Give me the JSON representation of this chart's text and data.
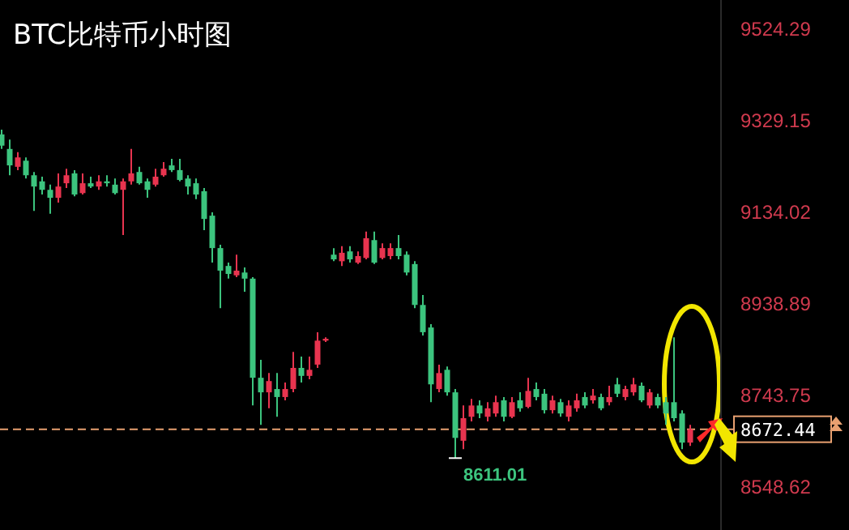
{
  "chart_data": {
    "type": "candlestick",
    "title": "BTC比特币小时图",
    "categories": [
      null,
      null,
      null,
      null,
      null,
      null,
      null,
      null,
      null,
      null,
      null,
      null,
      null,
      null,
      null,
      null,
      null,
      null,
      null,
      null,
      null,
      null,
      null,
      null,
      null,
      null,
      null,
      null,
      null,
      null,
      null,
      null,
      null,
      null,
      null,
      null,
      null,
      null,
      null,
      null,
      null,
      null,
      null,
      null,
      null,
      null,
      null,
      null,
      null,
      null,
      null,
      null,
      null,
      null,
      null,
      null,
      null,
      null,
      null,
      null,
      null,
      null,
      null,
      null,
      null,
      null,
      null,
      null,
      null,
      null,
      null,
      null,
      null,
      null,
      null,
      null,
      null,
      null,
      null,
      null,
      null,
      null,
      null,
      null,
      null,
      null
    ],
    "ohlc": [
      [
        9300,
        9310,
        9269,
        9276
      ],
      [
        9269,
        9289,
        9213,
        9234
      ],
      [
        9231,
        9262,
        9224,
        9251
      ],
      [
        9244,
        9251,
        9206,
        9213
      ],
      [
        9213,
        9220,
        9137,
        9189
      ],
      [
        9200,
        9210,
        9172,
        9182
      ],
      [
        9182,
        9193,
        9131,
        9165
      ],
      [
        9165,
        9217,
        9155,
        9189
      ],
      [
        9196,
        9227,
        9186,
        9213
      ],
      [
        9217,
        9224,
        9168,
        9172
      ],
      [
        9175,
        9217,
        9172,
        9196
      ],
      [
        9196,
        9210,
        9186,
        9189
      ],
      [
        9189,
        9213,
        9182,
        9200
      ],
      [
        9200,
        9213,
        9189,
        9196
      ],
      [
        9193,
        9206,
        9172,
        9175
      ],
      [
        9182,
        9206,
        9086,
        9200
      ],
      [
        9200,
        9269,
        9193,
        9217
      ],
      [
        9220,
        9231,
        9193,
        9196
      ],
      [
        9200,
        9206,
        9165,
        9182
      ],
      [
        9193,
        9227,
        9189,
        9210
      ],
      [
        9213,
        9241,
        9210,
        9227
      ],
      [
        9234,
        9248,
        9220,
        9224
      ],
      [
        9224,
        9248,
        9200,
        9203
      ],
      [
        9206,
        9213,
        9172,
        9189
      ],
      [
        9196,
        9206,
        9162,
        9172
      ],
      [
        9179,
        9186,
        9096,
        9120
      ],
      [
        9127,
        9134,
        9027,
        9058
      ],
      [
        9058,
        9065,
        8930,
        9010
      ],
      [
        9020,
        9027,
        8993,
        9003
      ],
      [
        9000,
        9044,
        8996,
        9010
      ],
      [
        9006,
        9017,
        8965,
        8993
      ],
      [
        8993,
        8996,
        8723,
        8782
      ],
      [
        8782,
        8820,
        8682,
        8751
      ],
      [
        8751,
        8792,
        8717,
        8775
      ],
      [
        8758,
        8792,
        8699,
        8741
      ],
      [
        8741,
        8772,
        8734,
        8758
      ],
      [
        8758,
        8837,
        8751,
        8803
      ],
      [
        8803,
        8827,
        8772,
        8786
      ],
      [
        8786,
        8827,
        8779,
        8799
      ],
      [
        8810,
        8879,
        8803,
        8861
      ],
      [
        8861,
        8868,
        8858,
        8865
      ],
      [
        9044,
        9058,
        9030,
        9034
      ],
      [
        9030,
        9062,
        9020,
        9048
      ],
      [
        9051,
        9062,
        9027,
        9034
      ],
      [
        9027,
        9051,
        9024,
        9041
      ],
      [
        9037,
        9093,
        9034,
        9079
      ],
      [
        9075,
        9093,
        9024,
        9027
      ],
      [
        9037,
        9068,
        9034,
        9058
      ],
      [
        9041,
        9068,
        9034,
        9058
      ],
      [
        9058,
        9086,
        9034,
        9041
      ],
      [
        9044,
        9051,
        9000,
        9006
      ],
      [
        9024,
        9030,
        8930,
        8937
      ],
      [
        8937,
        8958,
        8872,
        8879
      ],
      [
        8889,
        8896,
        8730,
        8768
      ],
      [
        8758,
        8810,
        8751,
        8792
      ],
      [
        8799,
        8806,
        8744,
        8751
      ],
      [
        8751,
        8758,
        8611.01,
        8654
      ],
      [
        8648,
        8723,
        8630,
        8696
      ],
      [
        8699,
        8737,
        8689,
        8723
      ],
      [
        8723,
        8734,
        8696,
        8706
      ],
      [
        8699,
        8730,
        8689,
        8717
      ],
      [
        8706,
        8744,
        8699,
        8730
      ],
      [
        8734,
        8741,
        8689,
        8699
      ],
      [
        8699,
        8741,
        8696,
        8730
      ],
      [
        8734,
        8751,
        8710,
        8717
      ],
      [
        8720,
        8782,
        8717,
        8754
      ],
      [
        8758,
        8772,
        8734,
        8741
      ],
      [
        8748,
        8758,
        8706,
        8713
      ],
      [
        8713,
        8744,
        8706,
        8734
      ],
      [
        8730,
        8737,
        8699,
        8706
      ],
      [
        8699,
        8734,
        8689,
        8723
      ],
      [
        8717,
        8748,
        8710,
        8734
      ],
      [
        8741,
        8751,
        8717,
        8723
      ],
      [
        8734,
        8758,
        8727,
        8744
      ],
      [
        8741,
        8748,
        8713,
        8717
      ],
      [
        8730,
        8765,
        8723,
        8741
      ],
      [
        8768,
        8782,
        8741,
        8748
      ],
      [
        8741,
        8765,
        8734,
        8758
      ],
      [
        8751,
        8782,
        8744,
        8768
      ],
      [
        8765,
        8772,
        8730,
        8734
      ],
      [
        8723,
        8758,
        8717,
        8751
      ],
      [
        8741,
        8748,
        8717,
        8723
      ],
      [
        8730,
        8741,
        8682,
        8706
      ],
      [
        8730,
        8868,
        8689,
        8696
      ],
      [
        8706,
        8713,
        8630,
        8644
      ],
      [
        8644,
        8682,
        8637,
        8672.44
      ]
    ],
    "colors": [
      "#3cc47e",
      "#3cc47e",
      "#e8344f",
      "#3cc47e",
      "#3cc47e",
      "#3cc47e",
      "#3cc47e",
      "#e8344f",
      "#e8344f",
      "#3cc47e",
      "#e8344f",
      "#3cc47e",
      "#e8344f",
      "#3cc47e",
      "#3cc47e",
      "#e8344f",
      "#e8344f",
      "#3cc47e",
      "#3cc47e",
      "#e8344f",
      "#e8344f",
      "#3cc47e",
      "#3cc47e",
      "#3cc47e",
      "#3cc47e",
      "#3cc47e",
      "#3cc47e",
      "#3cc47e",
      "#3cc47e",
      "#e8344f",
      "#3cc47e",
      "#3cc47e",
      "#3cc47e",
      "#e8344f",
      "#3cc47e",
      "#e8344f",
      "#e8344f",
      "#3cc47e",
      "#e8344f",
      "#e8344f",
      "#e8344f",
      "#3cc47e",
      "#e8344f",
      "#3cc47e",
      "#e8344f",
      "#e8344f",
      "#3cc47e",
      "#e8344f",
      "#e8344f",
      "#3cc47e",
      "#3cc47e",
      "#3cc47e",
      "#3cc47e",
      "#3cc47e",
      "#e8344f",
      "#3cc47e",
      "#3cc47e",
      "#e8344f",
      "#e8344f",
      "#3cc47e",
      "#e8344f",
      "#e8344f",
      "#3cc47e",
      "#e8344f",
      "#3cc47e",
      "#e8344f",
      "#3cc47e",
      "#3cc47e",
      "#e8344f",
      "#3cc47e",
      "#e8344f",
      "#e8344f",
      "#3cc47e",
      "#e8344f",
      "#3cc47e",
      "#e8344f",
      "#3cc47e",
      "#e8344f",
      "#e8344f",
      "#3cc47e",
      "#e8344f",
      "#3cc47e",
      "#3cc47e",
      "#3cc47e",
      "#3cc47e",
      "#e8344f"
    ],
    "ylim": [
      8458,
      9586
    ],
    "yticks": [
      9524.29,
      9329.15,
      9134.02,
      8938.89,
      8743.75,
      8548.62
    ],
    "ref_lines": [
      {
        "axis": "y",
        "value": 8672.44,
        "label": "8672.44",
        "color": "#e8a070",
        "line_style": "dashed"
      }
    ],
    "annotations": [
      "8611.01"
    ]
  }
}
